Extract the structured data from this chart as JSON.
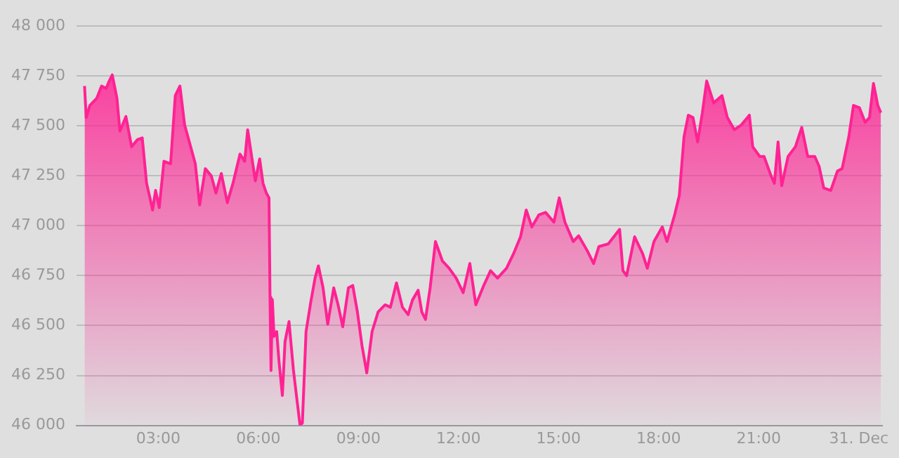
{
  "chart_data": {
    "type": "area",
    "x": [
      0.79,
      0.84,
      0.95,
      1.16,
      1.3,
      1.44,
      1.53,
      1.62,
      1.76,
      1.85,
      2.03,
      2.2,
      2.38,
      2.52,
      2.65,
      2.75,
      2.83,
      2.92,
      3.03,
      3.17,
      3.37,
      3.51,
      3.65,
      3.79,
      3.97,
      4.11,
      4.24,
      4.41,
      4.59,
      4.73,
      4.89,
      5.07,
      5.24,
      5.45,
      5.59,
      5.68,
      5.91,
      6.04,
      6.14,
      6.24,
      6.32,
      6.35,
      6.38,
      6.42,
      6.47,
      6.55,
      6.62,
      6.72,
      6.8,
      6.92,
      7.05,
      7.17,
      7.25,
      7.32,
      7.43,
      7.57,
      7.7,
      7.8,
      7.94,
      8.08,
      8.26,
      8.39,
      8.53,
      8.7,
      8.83,
      8.97,
      9.11,
      9.25,
      9.41,
      9.59,
      9.8,
      9.96,
      10.14,
      10.32,
      10.49,
      10.62,
      10.79,
      10.9,
      11.01,
      11.15,
      11.31,
      11.52,
      11.72,
      11.93,
      12.14,
      12.34,
      12.52,
      12.76,
      12.96,
      13.17,
      13.44,
      13.65,
      13.86,
      14.03,
      14.2,
      14.41,
      14.61,
      14.86,
      15.02,
      15.19,
      15.44,
      15.6,
      15.87,
      16.05,
      16.21,
      16.49,
      16.83,
      16.93,
      17.04,
      17.28,
      17.52,
      17.66,
      17.86,
      18.11,
      18.25,
      18.48,
      18.62,
      18.76,
      18.89,
      19.03,
      19.17,
      19.31,
      19.44,
      19.65,
      19.9,
      20.06,
      20.27,
      20.48,
      20.72,
      20.82,
      21.03,
      21.16,
      21.37,
      21.47,
      21.58,
      21.69,
      21.88,
      22.1,
      22.29,
      22.47,
      22.68,
      22.81,
      22.95,
      23.16,
      23.36,
      23.5,
      23.7,
      23.84,
      24.02,
      24.19,
      24.32,
      24.44,
      24.57,
      24.66
    ],
    "values": [
      47700,
      47542,
      47603,
      47640,
      47700,
      47688,
      47725,
      47756,
      47640,
      47474,
      47547,
      47396,
      47432,
      47440,
      47213,
      47140,
      47079,
      47177,
      47091,
      47323,
      47311,
      47652,
      47700,
      47505,
      47396,
      47311,
      47104,
      47286,
      47250,
      47164,
      47262,
      47116,
      47213,
      47359,
      47323,
      47481,
      47225,
      47335,
      47213,
      47164,
      47140,
      46641,
      46275,
      46630,
      46446,
      46470,
      46320,
      46150,
      46420,
      46520,
      46280,
      46110,
      46000,
      46012,
      46470,
      46616,
      46738,
      46799,
      46689,
      46507,
      46689,
      46604,
      46494,
      46689,
      46701,
      46568,
      46397,
      46263,
      46470,
      46568,
      46604,
      46592,
      46714,
      46592,
      46555,
      46628,
      46677,
      46568,
      46531,
      46689,
      46921,
      46823,
      46787,
      46738,
      46665,
      46811,
      46604,
      46702,
      46775,
      46738,
      46787,
      46860,
      46945,
      47079,
      46994,
      47055,
      47067,
      47018,
      47140,
      47018,
      46921,
      46950,
      46872,
      46811,
      46896,
      46909,
      46982,
      46775,
      46750,
      46945,
      46860,
      46787,
      46921,
      46994,
      46921,
      47055,
      47152,
      47445,
      47554,
      47542,
      47420,
      47566,
      47725,
      47615,
      47652,
      47542,
      47481,
      47505,
      47554,
      47396,
      47347,
      47347,
      47250,
      47213,
      47420,
      47201,
      47347,
      47396,
      47493,
      47347,
      47347,
      47298,
      47189,
      47177,
      47274,
      47286,
      47445,
      47603,
      47591,
      47518,
      47542,
      47713,
      47603,
      47566
    ],
    "color": "#ff2293",
    "xlim": [
      0.55,
      24.7
    ],
    "xticks": [
      {
        "value": 3,
        "label": "03:00"
      },
      {
        "value": 6,
        "label": "06:00"
      },
      {
        "value": 9,
        "label": "09:00"
      },
      {
        "value": 12,
        "label": "12:00"
      },
      {
        "value": 15,
        "label": "15:00"
      },
      {
        "value": 18,
        "label": "18:00"
      },
      {
        "value": 21,
        "label": "21:00"
      },
      {
        "value": 24,
        "label": "31. Dec"
      }
    ],
    "ylim": [
      46000,
      48000
    ],
    "yticks": [
      {
        "value": 46000,
        "label": "46 000"
      },
      {
        "value": 46250,
        "label": "46 250"
      },
      {
        "value": 46500,
        "label": "46 500"
      },
      {
        "value": 46750,
        "label": "46 750"
      },
      {
        "value": 47000,
        "label": "47 000"
      },
      {
        "value": 47250,
        "label": "47 250"
      },
      {
        "value": 47500,
        "label": "47 500"
      },
      {
        "value": 47750,
        "label": "47 750"
      },
      {
        "value": 48000,
        "label": "48 000"
      }
    ],
    "grid": "y",
    "legend": false,
    "marker": "none",
    "line_style": "solid"
  }
}
